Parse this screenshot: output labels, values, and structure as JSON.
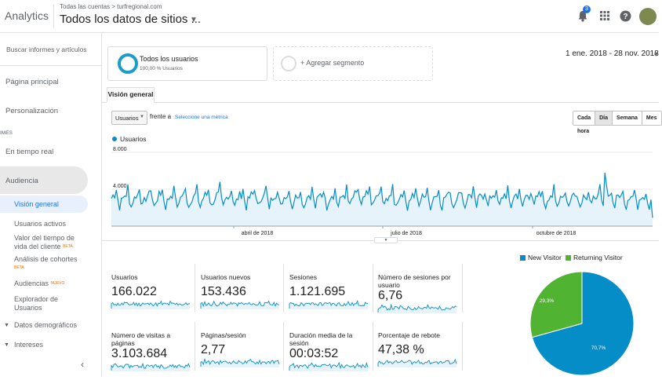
{
  "header": {
    "app_name": "Analytics",
    "account_crumb": "Todas las cuentas > turfregional.com",
    "view_title": "Todos los datos de sitios ...",
    "notification_count": "3"
  },
  "sidebar": {
    "search_placeholder": "Buscar informes y artículos",
    "home": "Página principal",
    "customization": "Personalización",
    "section_reports": "IMES",
    "realtime": "En tiempo real",
    "audience": "Audiencia",
    "sub": {
      "overview": "Visión general",
      "active_users": "Usuarios activos",
      "ltv_line1": "Valor del tiempo de",
      "ltv_line2": "vida del cliente",
      "cohort": "Análisis de cohortes",
      "audiences": "Audiencias",
      "explorer_line1": "Explorador de",
      "explorer_line2": "Usuarios",
      "demographics": "Datos demográficos",
      "interests": "Intereses"
    },
    "beta_label": "BETA",
    "new_label": "NUEVO"
  },
  "segments": {
    "all_users_name": "Todos los usuarios",
    "all_users_pct": "100,00 % Usuarios",
    "add_segment": "+ Agregar segmento"
  },
  "date_range": "1 ene. 2018 - 28 nov. 2018",
  "tab": {
    "overview": "Visión general"
  },
  "controls": {
    "metric_select": "Usuarios",
    "versus": "frente a",
    "select_metric": "Seleccione una métrica",
    "intervals": [
      "Cada hora",
      "Día",
      "Semana",
      "Mes"
    ],
    "active_interval": "Día"
  },
  "chart_data": {
    "type": "line",
    "series": [
      {
        "name": "Usuarios",
        "color": "#058dc7"
      }
    ],
    "y_ticks": [
      "8.000",
      "4.000"
    ],
    "ylim": [
      0,
      8000
    ],
    "x_ticks": [
      "abril de 2018",
      "julio de 2018",
      "octubre de 2018"
    ],
    "legend_placement": "top-left",
    "grid": true
  },
  "metrics": [
    {
      "label": "Usuarios",
      "value": "166.022"
    },
    {
      "label": "Usuarios nuevos",
      "value": "153.436"
    },
    {
      "label": "Sesiones",
      "value": "1.121.695"
    },
    {
      "label": "Número de sesiones por usuario",
      "value": "6,76"
    },
    {
      "label": "Número de visitas a páginas",
      "value": "3.103.684"
    },
    {
      "label": "Páginas/sesión",
      "value": "2,77"
    },
    {
      "label": "Duración media de la sesión",
      "value": "00:03:52"
    },
    {
      "label": "Porcentaje de rebote",
      "value": "47,38 %"
    }
  ],
  "pie": {
    "legend": [
      {
        "name": "New Visitor",
        "color": "#058dc7"
      },
      {
        "name": "Returning Visitor",
        "color": "#50b432"
      }
    ],
    "new_pct_label": "70,7%",
    "returning_pct_label": "29,3%",
    "new_fraction": 0.707
  }
}
